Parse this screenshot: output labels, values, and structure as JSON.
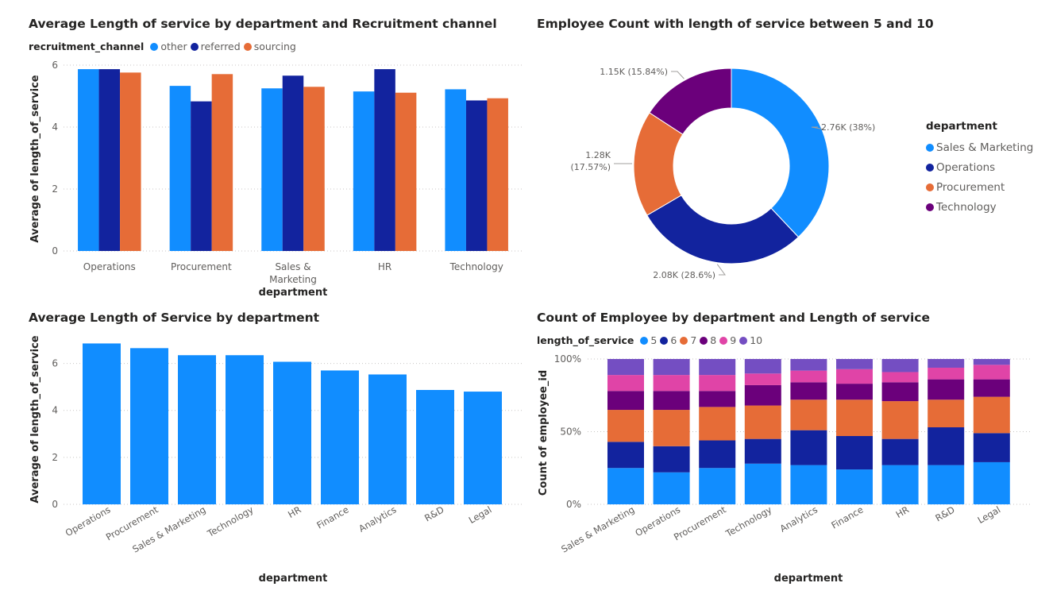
{
  "chart_data": [
    {
      "id": "avg_by_dept_channel",
      "type": "bar",
      "title": "Average Length of service by department and Recruitment channel",
      "legend_title": "recruitment_channel",
      "xlabel": "department",
      "ylabel": "Average of length_of_service",
      "categories": [
        "Operations",
        "Procurement",
        "Sales & Marketing",
        "HR",
        "Technology"
      ],
      "category_lines": [
        [
          "Operations"
        ],
        [
          "Procurement"
        ],
        [
          "Sales &",
          "Marketing"
        ],
        [
          "HR"
        ],
        [
          "Technology"
        ]
      ],
      "yticks": [
        "0",
        "2",
        "4",
        "6"
      ],
      "ylim": [
        0,
        6
      ],
      "series": [
        {
          "name": "other",
          "color": "#118dff",
          "values": [
            5.87,
            5.33,
            5.25,
            5.15,
            5.22
          ]
        },
        {
          "name": "referred",
          "color": "#12239e",
          "values": [
            5.87,
            4.83,
            5.66,
            5.87,
            4.86
          ]
        },
        {
          "name": "sourcing",
          "color": "#e66c37",
          "values": [
            5.76,
            5.71,
            5.3,
            5.11,
            4.93
          ]
        }
      ]
    },
    {
      "id": "donut_5_10",
      "type": "pie",
      "title": "Employee Count with length of service between 5 and 10",
      "legend_title": "department",
      "slices": [
        {
          "name": "Sales & Marketing",
          "color": "#118dff",
          "value": 2760,
          "pct": 38.0,
          "label": "2.76K (38%)"
        },
        {
          "name": "Operations",
          "color": "#12239e",
          "value": 2080,
          "pct": 28.6,
          "label": "2.08K (28.6%)"
        },
        {
          "name": "Procurement",
          "color": "#e66c37",
          "value": 1280,
          "pct": 17.57,
          "label_lines": [
            "1.28K",
            "(17.57%)"
          ]
        },
        {
          "name": "Technology",
          "color": "#6b007b",
          "value": 1150,
          "pct": 15.84,
          "label": "1.15K (15.84%)"
        }
      ]
    },
    {
      "id": "avg_by_dept",
      "type": "bar",
      "title": "Average Length of Service by department",
      "xlabel": "department",
      "ylabel": "Average of length_of_service",
      "color": "#118dff",
      "categories": [
        "Operations",
        "Procurement",
        "Sales & Marketing",
        "Technology",
        "HR",
        "Finance",
        "Analytics",
        "R&D",
        "Legal"
      ],
      "values": [
        6.85,
        6.65,
        6.35,
        6.35,
        6.07,
        5.7,
        5.53,
        4.87,
        4.8
      ],
      "yticks": [
        "0",
        "2",
        "4",
        "6"
      ],
      "ylim": [
        0,
        7
      ]
    },
    {
      "id": "count_stacked",
      "type": "bar",
      "stacked": "percent",
      "title": "Count of Employee by department and Length of service",
      "legend_title": "length_of_service",
      "xlabel": "department",
      "ylabel": "Count of employee_id",
      "yticks": [
        "0%",
        "50%",
        "100%"
      ],
      "categories": [
        "Sales & Marketing",
        "Operations",
        "Procurement",
        "Technology",
        "Analytics",
        "Finance",
        "HR",
        "R&D",
        "Legal"
      ],
      "series": [
        {
          "name": "5",
          "color": "#118dff",
          "values": [
            25,
            22,
            25,
            28,
            27,
            24,
            27,
            27,
            29
          ]
        },
        {
          "name": "6",
          "color": "#12239e",
          "values": [
            18,
            18,
            19,
            17,
            24,
            23,
            18,
            26,
            20
          ]
        },
        {
          "name": "7",
          "color": "#e66c37",
          "values": [
            22,
            25,
            23,
            23,
            21,
            25,
            26,
            19,
            25
          ]
        },
        {
          "name": "8",
          "color": "#6b007b",
          "values": [
            13,
            13,
            11,
            14,
            12,
            11,
            13,
            14,
            12
          ]
        },
        {
          "name": "9",
          "color": "#e044a7",
          "values": [
            11,
            11,
            11,
            8,
            8,
            10,
            7,
            8,
            10
          ]
        },
        {
          "name": "10",
          "color": "#744ec2",
          "values": [
            11,
            11,
            11,
            10,
            8,
            7,
            9,
            6,
            4
          ]
        }
      ]
    }
  ]
}
